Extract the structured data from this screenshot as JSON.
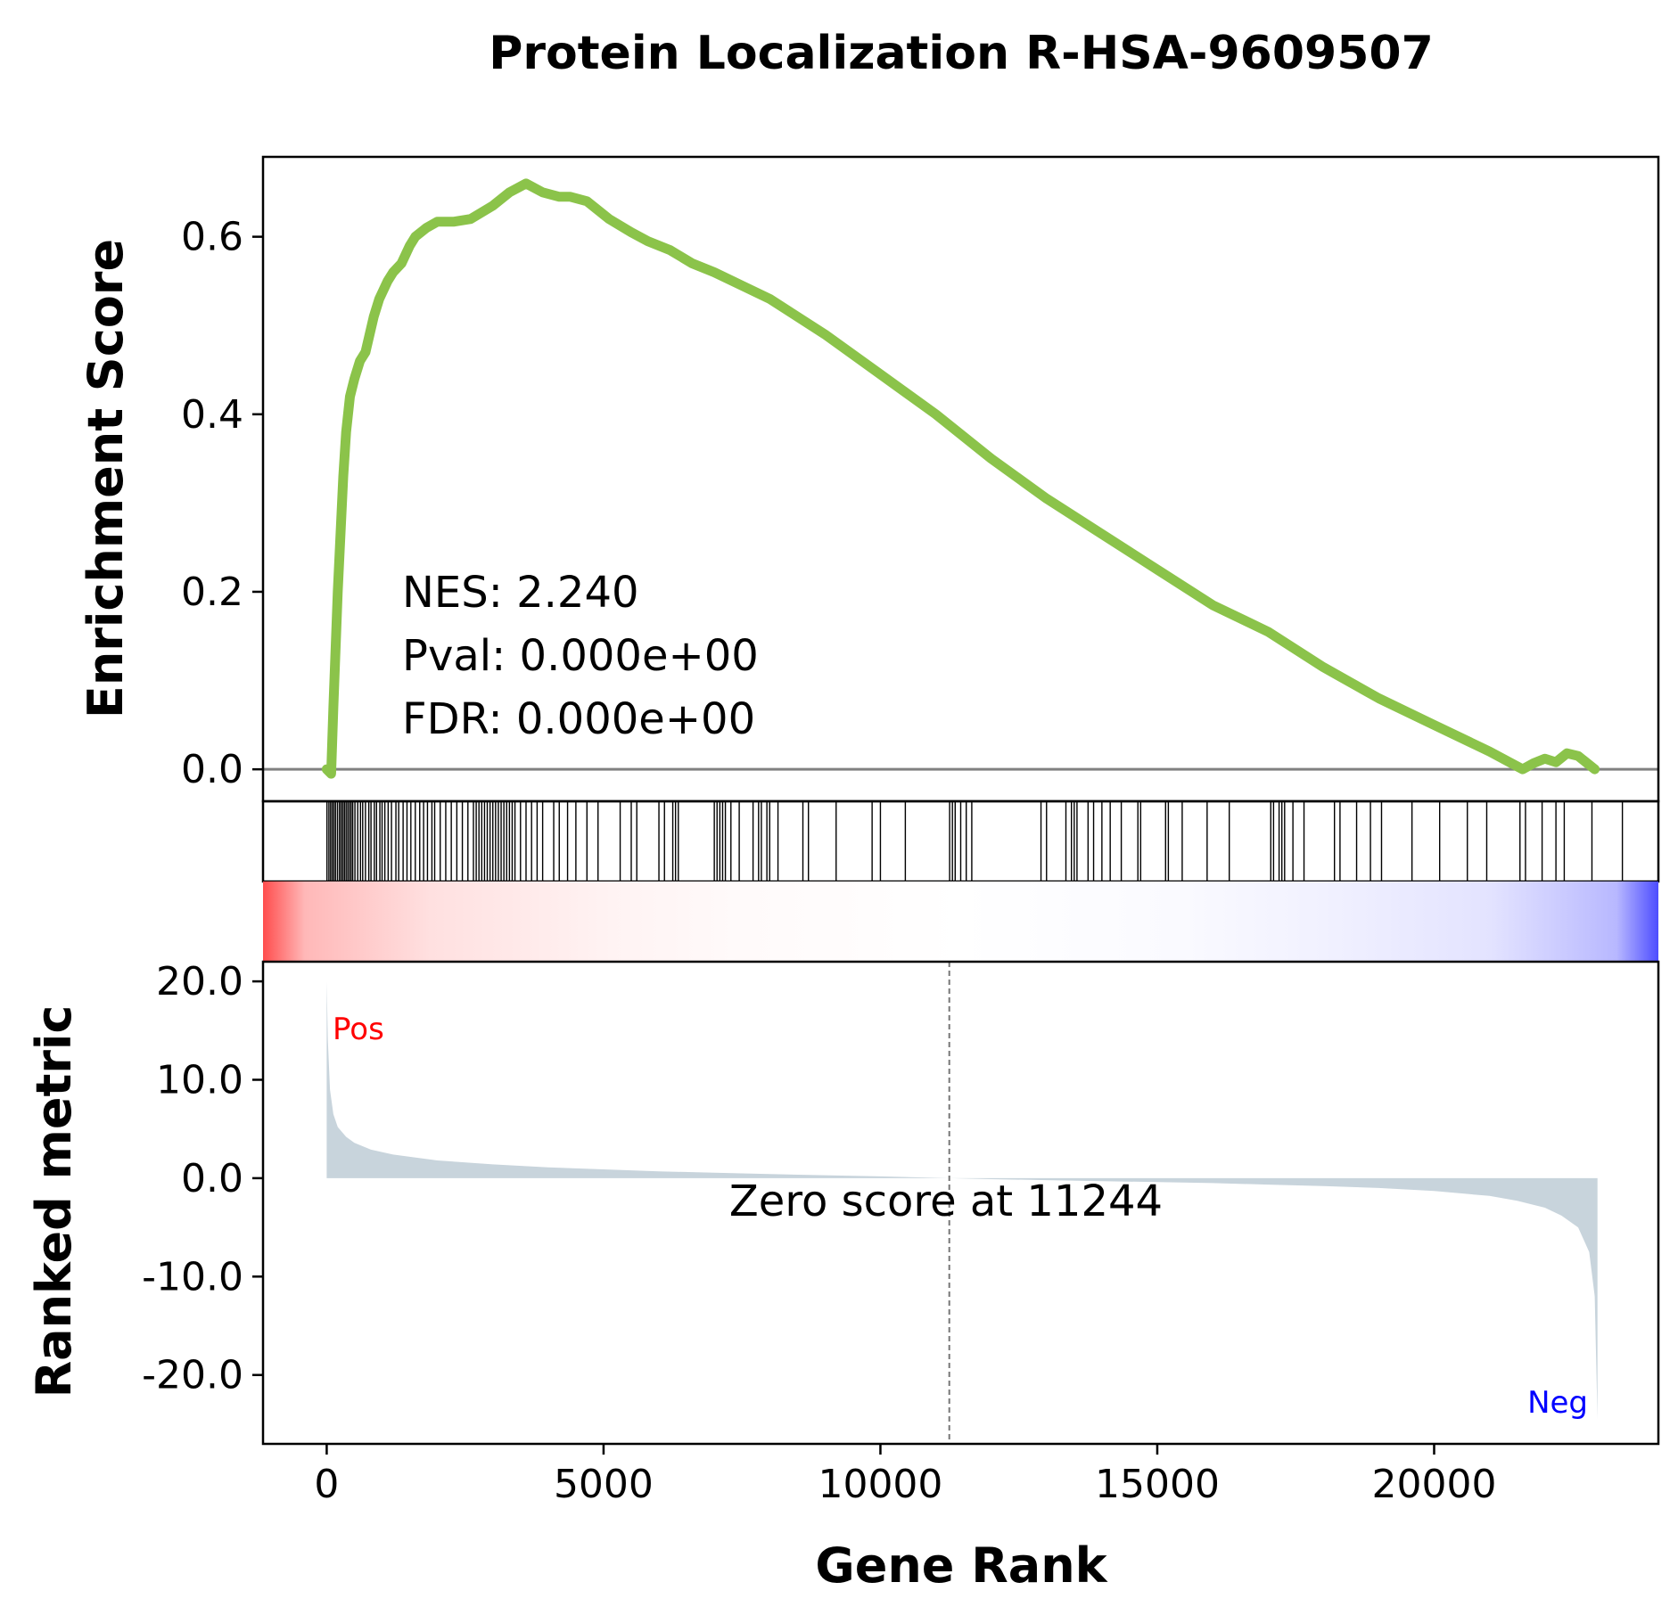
{
  "chart_data": {
    "type": "line",
    "title": "Protein Localization R-HSA-9609507",
    "xlabel": "Gene Rank",
    "xlim": [
      -1150,
      24050
    ],
    "xticks": [
      0,
      5000,
      10000,
      15000,
      20000
    ],
    "xtick_labels": [
      "0",
      "5000",
      "10000",
      "15000",
      "20000"
    ],
    "grid": false,
    "enrichment": {
      "ylabel": "Enrichment Score",
      "ylim": [
        -0.036,
        0.69
      ],
      "yticks": [
        0.0,
        0.2,
        0.4,
        0.6
      ],
      "ytick_labels": [
        "0.0",
        "0.2",
        "0.4",
        "0.6"
      ],
      "line_color": "#8bc34a",
      "zero_line_color": "#808080",
      "series": [
        {
          "x": [
            0,
            80,
            120,
            200,
            300,
            350,
            420,
            500,
            600,
            700,
            850,
            950,
            1100,
            1200,
            1350,
            1500,
            1600,
            1800,
            2000,
            2300,
            2600,
            3000,
            3300,
            3600,
            3900,
            4200,
            4400,
            4700,
            5100,
            5500,
            5800,
            6200,
            6600,
            7000,
            7500,
            8000,
            9000,
            10000,
            11000,
            12000,
            13000,
            14000,
            15000,
            16000,
            17000,
            18000,
            19000,
            20000,
            21000,
            21600,
            21800,
            22000,
            22200,
            22400,
            22600,
            22900
          ],
          "y": [
            0.0,
            -0.005,
            0.07,
            0.2,
            0.33,
            0.38,
            0.42,
            0.44,
            0.46,
            0.47,
            0.51,
            0.53,
            0.55,
            0.56,
            0.57,
            0.59,
            0.6,
            0.61,
            0.617,
            0.617,
            0.62,
            0.635,
            0.65,
            0.66,
            0.65,
            0.645,
            0.645,
            0.64,
            0.62,
            0.605,
            0.595,
            0.585,
            0.57,
            0.56,
            0.545,
            0.53,
            0.49,
            0.445,
            0.4,
            0.35,
            0.305,
            0.265,
            0.225,
            0.185,
            0.155,
            0.115,
            0.08,
            0.05,
            0.02,
            0.0,
            0.007,
            0.012,
            0.008,
            0.018,
            0.015,
            0.0
          ]
        }
      ],
      "annotation": {
        "nes": "NES: 2.240",
        "pval": "Pval: 0.000e+00",
        "fdr": "FDR: 0.000e+00"
      }
    },
    "hits": {
      "color": "#000000",
      "positions": [
        5,
        40,
        70,
        100,
        130,
        160,
        195,
        230,
        260,
        290,
        320,
        350,
        380,
        410,
        440,
        470,
        510,
        560,
        610,
        650,
        700,
        760,
        800,
        860,
        900,
        960,
        1000,
        1050,
        1110,
        1170,
        1250,
        1300,
        1380,
        1450,
        1520,
        1600,
        1680,
        1750,
        1820,
        1900,
        1950,
        2050,
        2150,
        2250,
        2350,
        2450,
        2550,
        2650,
        2700,
        2750,
        2800,
        2850,
        2900,
        2950,
        3000,
        3050,
        3100,
        3150,
        3200,
        3250,
        3300,
        3350,
        3400,
        3500,
        3600,
        3700,
        3800,
        3900,
        4100,
        4200,
        4350,
        4500,
        4700,
        4900,
        5300,
        5500,
        5600,
        6000,
        6100,
        6250,
        6300,
        6350,
        7000,
        7050,
        7100,
        7150,
        7200,
        7300,
        7450,
        7700,
        7800,
        7850,
        7950,
        8000,
        8150,
        8600,
        8700,
        9200,
        9850,
        10000,
        10450,
        11250,
        11300,
        11350,
        11450,
        11550,
        11650,
        12900,
        13000,
        13350,
        13450,
        13500,
        13550,
        13750,
        13850,
        14000,
        14150,
        14350,
        14650,
        14700,
        15150,
        15200,
        15450,
        15900,
        16300,
        17050,
        17100,
        17200,
        17250,
        17300,
        17450,
        17650,
        18200,
        18300,
        18600,
        18850,
        19050,
        19600,
        20100,
        20600,
        20950,
        21550,
        21650,
        21950,
        22200,
        22350,
        22850,
        23400
      ]
    },
    "ranked_metric": {
      "ylabel": "Ranked metric",
      "ylim": [
        -27,
        22
      ],
      "yticks": [
        20,
        10,
        0,
        -10,
        -20
      ],
      "ytick_labels": [
        "20.0",
        "10.0",
        "0.0",
        "-10.0",
        "-20.0"
      ],
      "fill_color": "#c8d4dc",
      "x": [
        0,
        20,
        60,
        120,
        200,
        350,
        500,
        800,
        1200,
        2000,
        3000,
        4000,
        5000,
        6000,
        7000,
        8000,
        9000,
        10000,
        11244,
        12000,
        13000,
        14000,
        15000,
        16000,
        17000,
        18000,
        19000,
        20000,
        21000,
        21500,
        22000,
        22300,
        22600,
        22800,
        22900,
        22950
      ],
      "y": [
        20.0,
        14.0,
        9.0,
        6.5,
        5.2,
        4.2,
        3.6,
        2.9,
        2.4,
        1.8,
        1.4,
        1.1,
        0.9,
        0.7,
        0.55,
        0.42,
        0.3,
        0.18,
        0.0,
        -0.1,
        -0.2,
        -0.3,
        -0.4,
        -0.5,
        -0.65,
        -0.8,
        -1.0,
        -1.3,
        -1.8,
        -2.3,
        -3.0,
        -3.8,
        -5.0,
        -7.5,
        -12.0,
        -24.5
      ],
      "zero_cross": 11244,
      "zero_label": "Zero score at 11244",
      "pos_label": "Pos",
      "neg_label": "Neg",
      "pos_color": "#ff0000",
      "neg_color": "#0000ff"
    },
    "colorbar": {
      "left_color": "#ff4d4d",
      "right_color": "#4d4dff"
    }
  }
}
